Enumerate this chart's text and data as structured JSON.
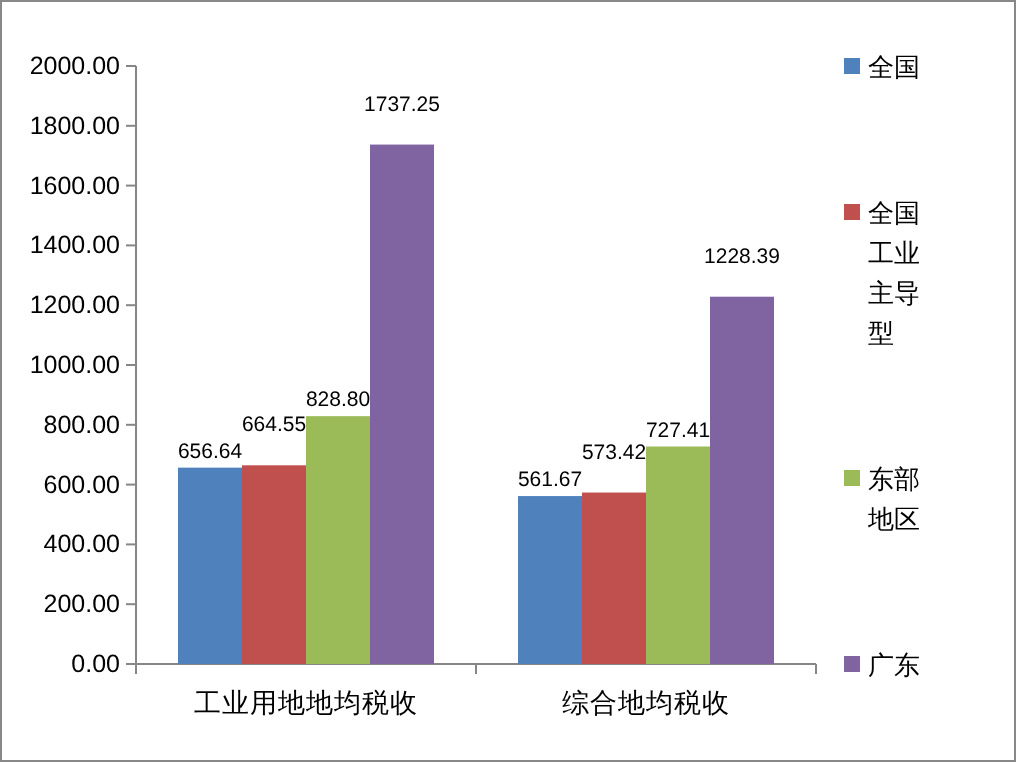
{
  "chart_data": {
    "type": "bar",
    "categories": [
      "工业用地地均税收",
      "综合地均税收"
    ],
    "series": [
      {
        "name": "全国",
        "color": "#4f81bd",
        "values": [
          656.64,
          561.67
        ],
        "value_labels": [
          "656.64",
          "561.67"
        ]
      },
      {
        "name": "全国工业主导型",
        "color": "#c0504d",
        "values": [
          664.55,
          573.42
        ],
        "value_labels": [
          "664.55",
          "573.42"
        ]
      },
      {
        "name": "东部地区",
        "color": "#9bbb59",
        "values": [
          828.8,
          727.41
        ],
        "value_labels": [
          "828.80",
          "727.41"
        ]
      },
      {
        "name": "广东",
        "color": "#8064a2",
        "values": [
          1737.25,
          1228.39
        ],
        "value_labels": [
          "1737.25",
          "1228.39"
        ]
      }
    ],
    "ylim": [
      0,
      2000
    ],
    "yticks": [
      {
        "value": 0,
        "label": "0.00"
      },
      {
        "value": 200,
        "label": "200.00"
      },
      {
        "value": 400,
        "label": "400.00"
      },
      {
        "value": 600,
        "label": "600.00"
      },
      {
        "value": 800,
        "label": "800.00"
      },
      {
        "value": 1000,
        "label": "1000.00"
      },
      {
        "value": 1200,
        "label": "1200.00"
      },
      {
        "value": 1400,
        "label": "1400.00"
      },
      {
        "value": 1600,
        "label": "1600.00"
      },
      {
        "value": 1800,
        "label": "1800.00"
      },
      {
        "value": 2000,
        "label": "2000.00"
      }
    ],
    "legend": "right"
  }
}
